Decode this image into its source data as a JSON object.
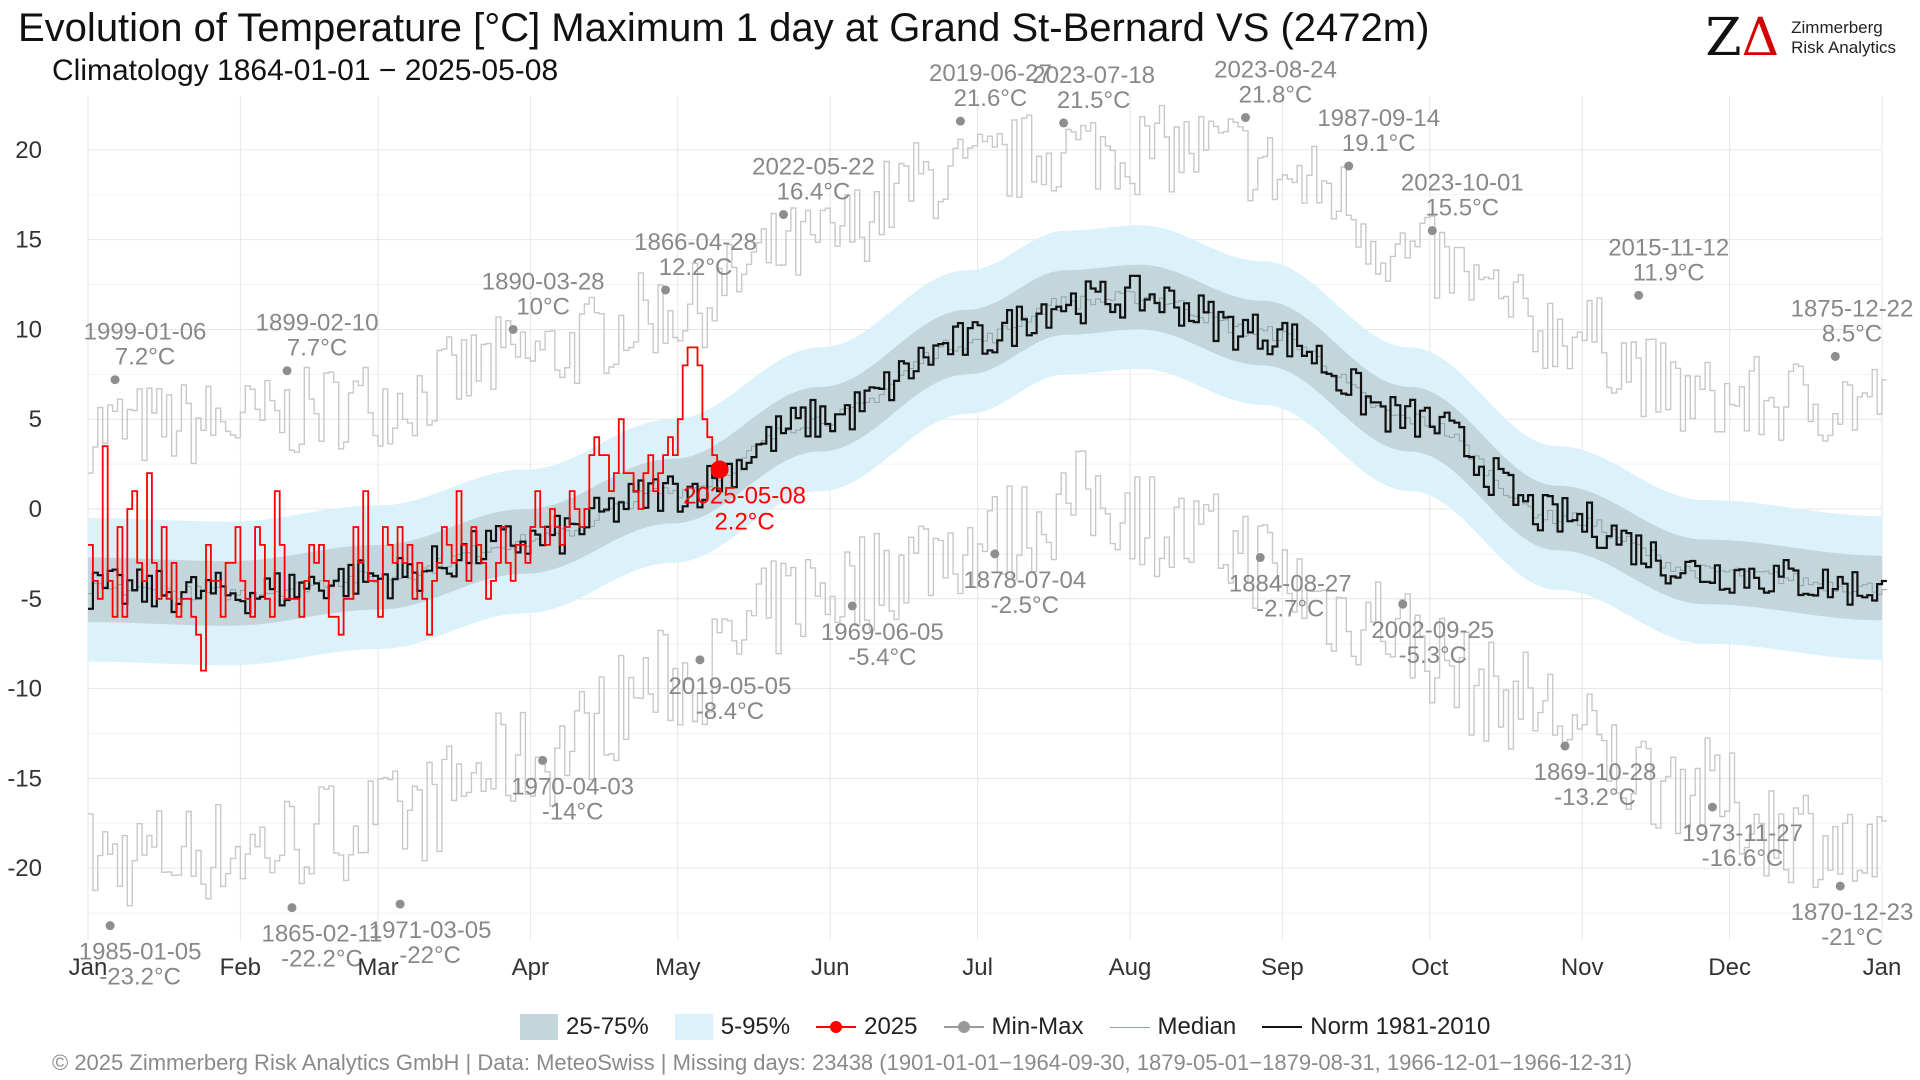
{
  "title": "Evolution of Temperature [°C] Maximum 1 day at Grand St-Bernard  VS (2472m)",
  "subtitle": "Climatology 1864-01-01 − 2025-05-08",
  "logo": {
    "line1": "Zimmerberg",
    "line2": "Risk Analytics",
    "mark": "Z",
    "mark_delta": "Δ"
  },
  "footer": "©  2025 Zimmerberg Risk Analytics GmbH | Data: MeteoSwiss | Missing days: 23438 (1901-01-01−1964-09-30, 1879-05-01−1879-08-31, 1966-12-01−1966-12-31)",
  "legend": [
    {
      "key": "band50",
      "label": "25-75%",
      "color": "#c3d6dc"
    },
    {
      "key": "band90",
      "label": "5-95%",
      "color": "#dbf2fa"
    },
    {
      "key": "current",
      "label": "2025",
      "color": "#ff0000"
    },
    {
      "key": "minmax",
      "label": "Min-Max",
      "color": "#999999"
    },
    {
      "key": "median",
      "label": "Median",
      "color": "#8fa3a8"
    },
    {
      "key": "norm",
      "label": "Norm 1981-2010",
      "color": "#111111"
    }
  ],
  "colors": {
    "current": "#ff0000",
    "norm": "#111111",
    "minmax": "#c8c8c8",
    "record": "#888888",
    "grid": "#e6e6e6"
  },
  "chart_data": {
    "type": "line",
    "x_unit": "day of year",
    "xlim": [
      1,
      366
    ],
    "ylim": [
      -24,
      23
    ],
    "grid": true,
    "legend_placement": "bottom",
    "y_ticks": [
      20,
      15,
      10,
      5,
      0,
      -5,
      -10,
      -15,
      -20
    ],
    "y_tick_labels": [
      "20",
      "15",
      "10",
      "5",
      "0",
      "-5",
      "-10",
      "-15",
      "-20"
    ],
    "x_ticks": [
      1,
      32,
      60,
      91,
      121,
      152,
      182,
      213,
      244,
      274,
      305,
      335,
      366
    ],
    "x_tick_labels": [
      "Jan",
      "Feb",
      "Mar",
      "Apr",
      "May",
      "Jun",
      "Jul",
      "Aug",
      "Sep",
      "Oct",
      "Nov",
      "Dec",
      "Jan"
    ],
    "median_anchors": {
      "day": [
        1,
        30,
        60,
        90,
        120,
        150,
        180,
        200,
        215,
        240,
        270,
        300,
        330,
        366
      ],
      "value": [
        -4.5,
        -4.7,
        -3.8,
        -1.8,
        1.0,
        5.0,
        9.3,
        11.5,
        11.8,
        9.8,
        5.0,
        -0.5,
        -3.5,
        -4.4
      ]
    },
    "band50_halfwidth": 1.8,
    "band90_halfwidth": 4.0,
    "norm_noise": 1.2,
    "max_anchors": {
      "day": [
        1,
        30,
        60,
        90,
        120,
        145,
        175,
        200,
        230,
        250,
        270,
        300,
        330,
        366
      ],
      "value": [
        4.5,
        4.8,
        6.0,
        8.5,
        11.0,
        14.5,
        18.5,
        20.0,
        20.0,
        18.0,
        14.0,
        10.0,
        6.0,
        6.0
      ]
    },
    "min_anchors": {
      "day": [
        1,
        30,
        60,
        90,
        120,
        150,
        180,
        205,
        230,
        260,
        290,
        320,
        350,
        366
      ],
      "value": [
        -19.5,
        -19.0,
        -17.5,
        -14.0,
        -9.5,
        -4.5,
        -2.0,
        0.5,
        -2.0,
        -6.0,
        -10.5,
        -15.0,
        -18.0,
        -20.0
      ]
    },
    "current_year": {
      "name": "2025",
      "last_date": "2025-05-08",
      "last_value": 2.2,
      "values": [
        -2,
        -4,
        -5,
        3.5,
        -4,
        -6,
        -1,
        -6,
        0,
        1,
        -3,
        -4,
        2,
        -3,
        -5,
        -1,
        -5,
        -3,
        -6,
        -5,
        -5,
        -6,
        -7,
        -9,
        -2,
        -4,
        -4,
        -6,
        -3,
        -3,
        -1,
        -4,
        -5,
        -6,
        -1,
        -2,
        -5,
        -6,
        1,
        -2,
        -5,
        -5,
        -5,
        -6,
        -4,
        -2,
        -3,
        -2,
        -4,
        -6,
        -6,
        -7,
        -5,
        -5,
        -1,
        -3,
        1,
        -4,
        -4,
        -6,
        -1,
        -2,
        -3,
        -1,
        -3,
        -2,
        -5,
        -3,
        -5,
        -7,
        -4,
        -3,
        -1,
        -2,
        -3,
        1,
        -2,
        -4,
        -1,
        -2,
        -3,
        -5,
        -4,
        -3,
        -1,
        -3,
        -4,
        -2,
        -2,
        -3,
        -1,
        1,
        -1,
        -2,
        0,
        -1,
        -2,
        -1,
        1,
        0,
        -1,
        0,
        3,
        4,
        3,
        3,
        1,
        2,
        5,
        2,
        2,
        1,
        0,
        2,
        3,
        1,
        2,
        3,
        4,
        3,
        5,
        8,
        9,
        9,
        8,
        5,
        4,
        3,
        2.2
      ],
      "label": "2025-05-08",
      "label_value": "2.2°C"
    },
    "records": [
      {
        "date": "1999-01-06",
        "value": "7.2°C",
        "day": 6,
        "temp": 7.2,
        "kind": "max"
      },
      {
        "date": "1899-02-10",
        "value": "7.7°C",
        "day": 41,
        "temp": 7.7,
        "kind": "max"
      },
      {
        "date": "1890-03-28",
        "value": "10°C",
        "day": 87,
        "temp": 10,
        "kind": "max"
      },
      {
        "date": "1866-04-28",
        "value": "12.2°C",
        "day": 118,
        "temp": 12.2,
        "kind": "max"
      },
      {
        "date": "2022-05-22",
        "value": "16.4°C",
        "day": 142,
        "temp": 16.4,
        "kind": "max"
      },
      {
        "date": "2019-06-27",
        "value": "21.6°C",
        "day": 178,
        "temp": 21.6,
        "kind": "max"
      },
      {
        "date": "2023-07-18",
        "value": "21.5°C",
        "day": 199,
        "temp": 21.5,
        "kind": "max"
      },
      {
        "date": "2023-08-24",
        "value": "21.8°C",
        "day": 236,
        "temp": 21.8,
        "kind": "max"
      },
      {
        "date": "1987-09-14",
        "value": "19.1°C",
        "day": 257,
        "temp": 19.1,
        "kind": "max"
      },
      {
        "date": "2023-10-01",
        "value": "15.5°C",
        "day": 274,
        "temp": 15.5,
        "kind": "max"
      },
      {
        "date": "2015-11-12",
        "value": "11.9°C",
        "day": 316,
        "temp": 11.9,
        "kind": "max"
      },
      {
        "date": "1875-12-22",
        "value": "8.5°C",
        "day": 356,
        "temp": 8.5,
        "kind": "max"
      },
      {
        "date": "1985-01-05",
        "value": "-23.2°C",
        "day": 5,
        "temp": -23.2,
        "kind": "min"
      },
      {
        "date": "1865-02-11",
        "value": "-22.2°C",
        "day": 42,
        "temp": -22.2,
        "kind": "min"
      },
      {
        "date": "1971-03-05",
        "value": "-22°C",
        "day": 64,
        "temp": -22,
        "kind": "min"
      },
      {
        "date": "1970-04-03",
        "value": "-14°C",
        "day": 93,
        "temp": -14,
        "kind": "min"
      },
      {
        "date": "2019-05-05",
        "value": "-8.4°C",
        "day": 125,
        "temp": -8.4,
        "kind": "min"
      },
      {
        "date": "1969-06-05",
        "value": "-5.4°C",
        "day": 156,
        "temp": -5.4,
        "kind": "min"
      },
      {
        "date": "1878-07-04",
        "value": "-2.5°C",
        "day": 185,
        "temp": -2.5,
        "kind": "min"
      },
      {
        "date": "1884-08-27",
        "value": "-2.7°C",
        "day": 239,
        "temp": -2.7,
        "kind": "min"
      },
      {
        "date": "2002-09-25",
        "value": "-5.3°C",
        "day": 268,
        "temp": -5.3,
        "kind": "min"
      },
      {
        "date": "1869-10-28",
        "value": "-13.2°C",
        "day": 301,
        "temp": -13.2,
        "kind": "min"
      },
      {
        "date": "1973-11-27",
        "value": "-16.6°C",
        "day": 331,
        "temp": -16.6,
        "kind": "min"
      },
      {
        "date": "1870-12-23",
        "value": "-21°C",
        "day": 357,
        "temp": -21,
        "kind": "min"
      }
    ]
  }
}
